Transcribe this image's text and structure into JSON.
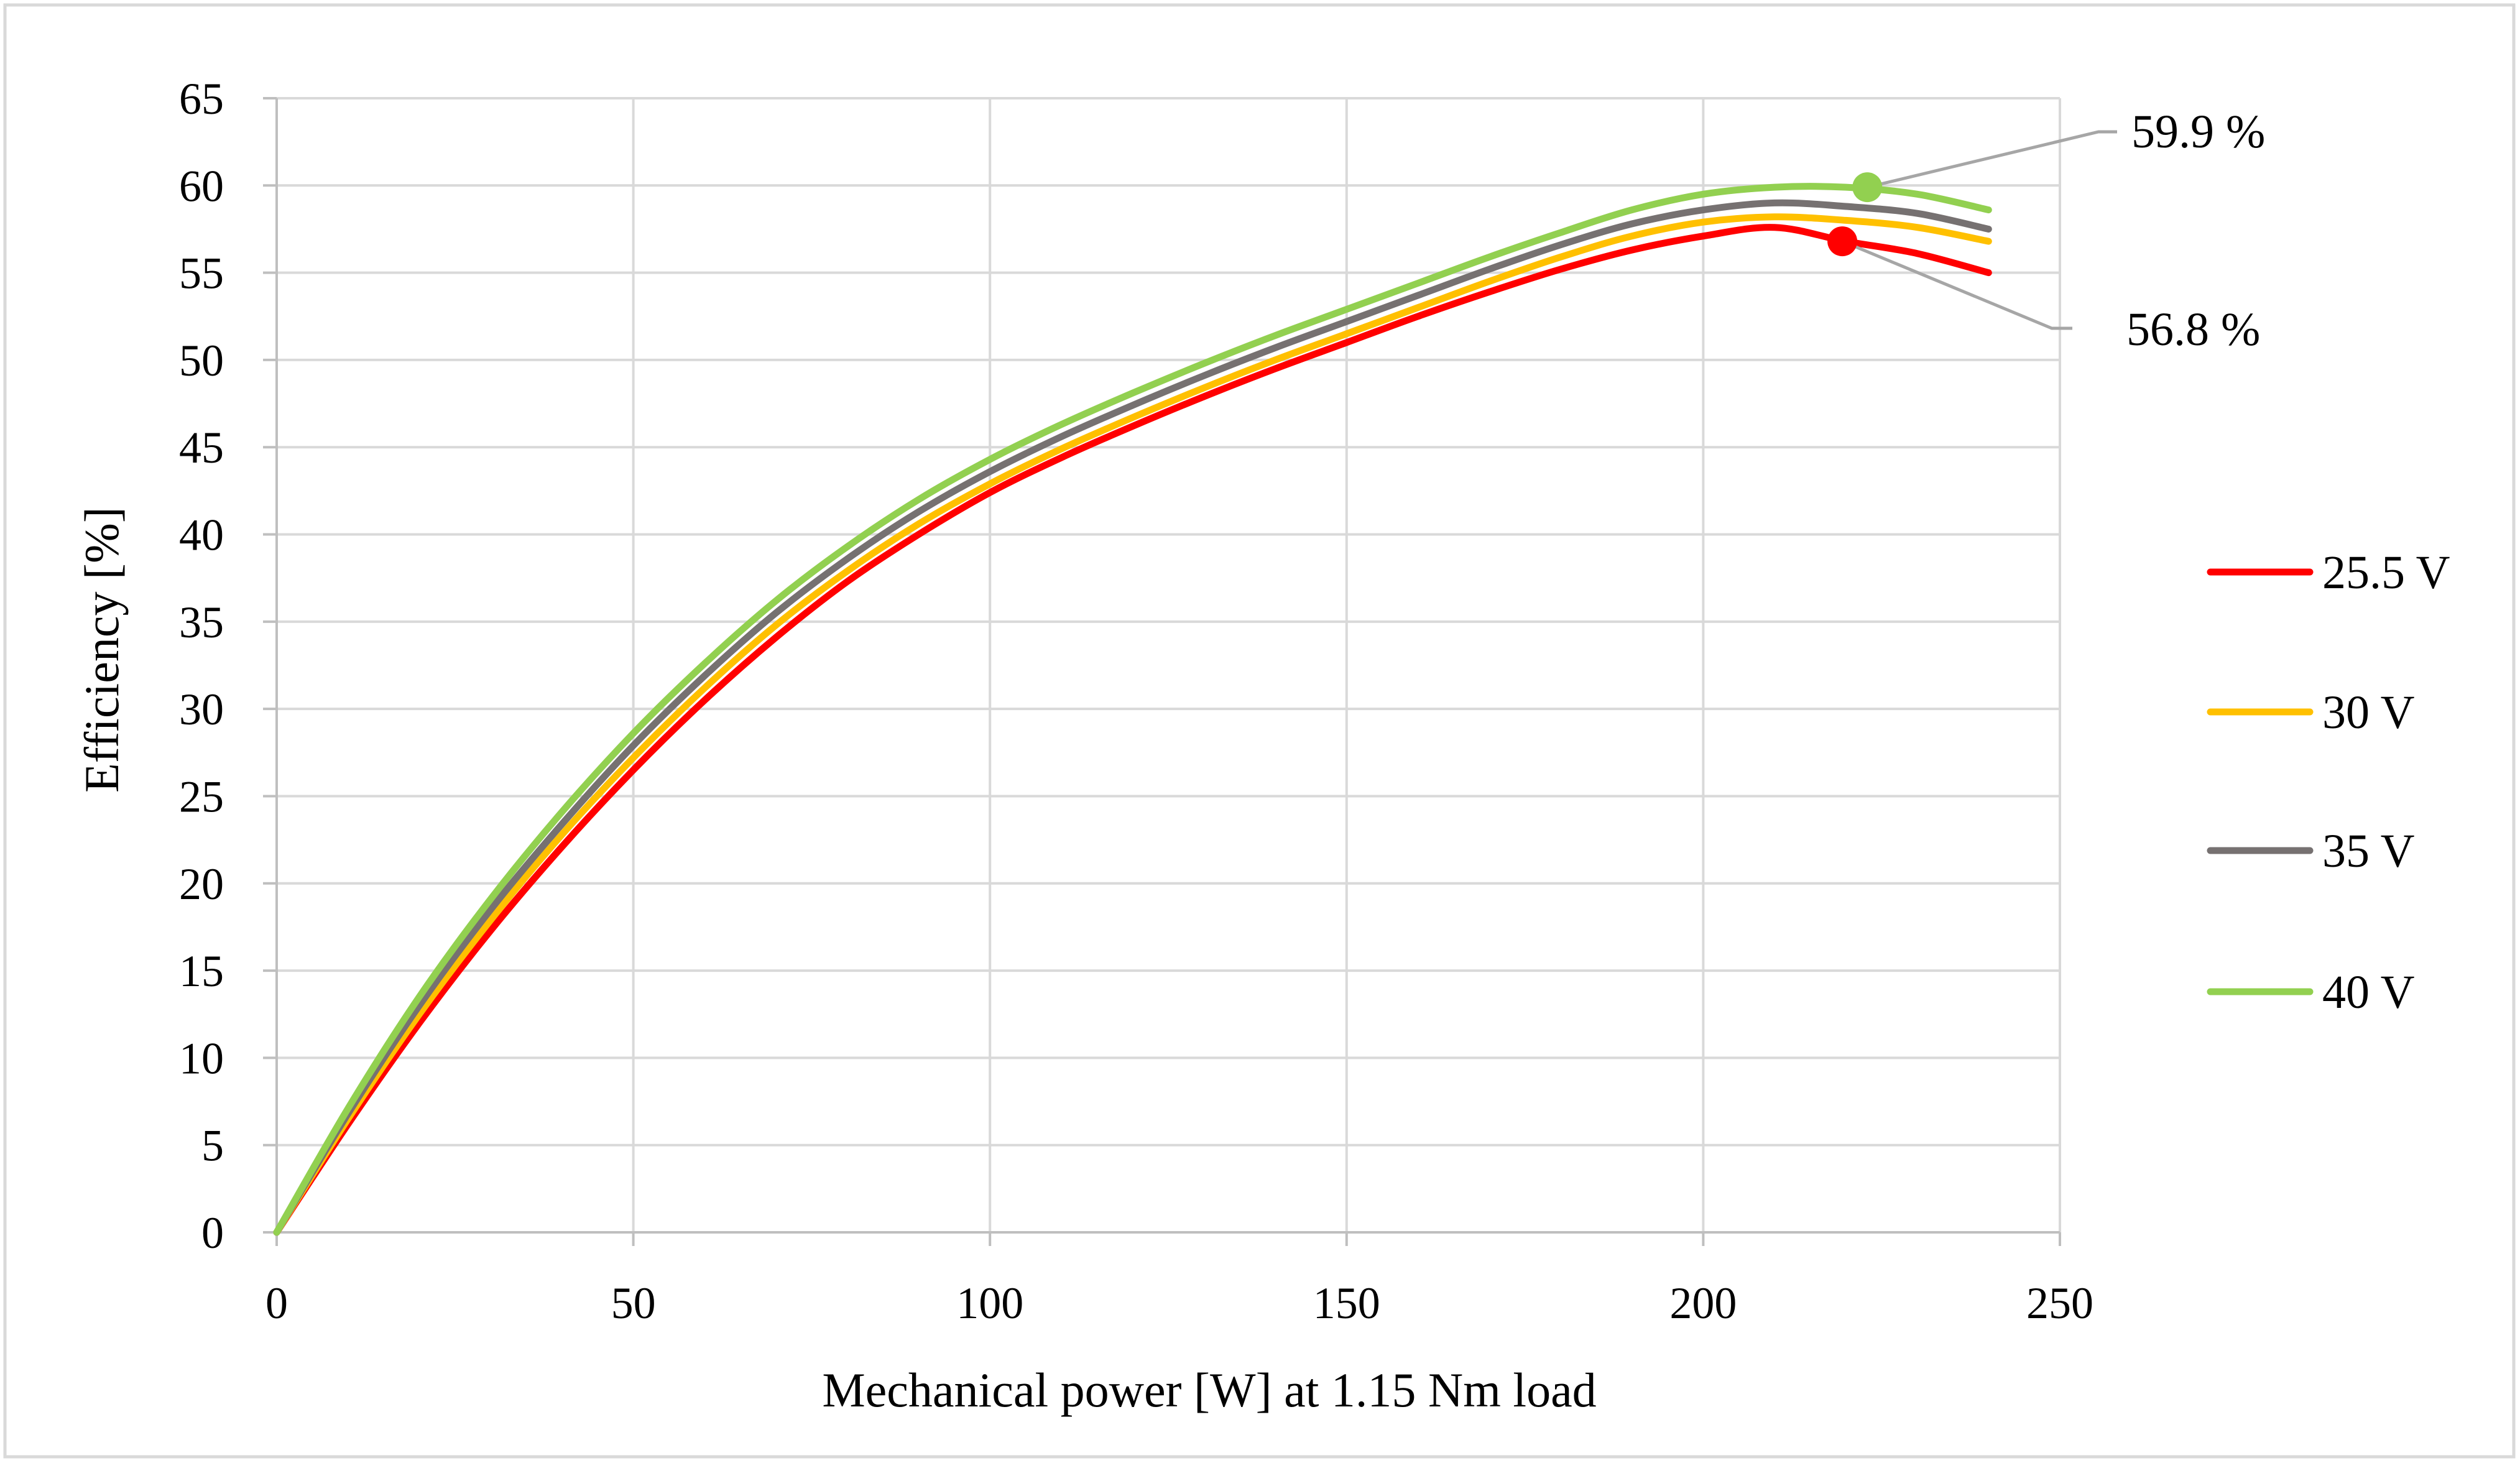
{
  "chart_data": {
    "type": "line",
    "title": "",
    "xlabel": "Mechanical power [W] at 1.15 Nm load",
    "ylabel": "Efficiency [%]",
    "xlim": [
      0,
      250
    ],
    "ylim": [
      0,
      65
    ],
    "xticks": [
      0,
      50,
      100,
      150,
      200,
      250
    ],
    "yticks": [
      0,
      5,
      10,
      15,
      20,
      25,
      30,
      35,
      40,
      45,
      50,
      55,
      60,
      65
    ],
    "grid": true,
    "legend_position": "right",
    "series": [
      {
        "name": "25.5 V",
        "color": "#ff0000",
        "x": [
          0,
          10,
          20,
          30,
          40,
          50,
          60,
          70,
          80,
          90,
          100,
          110,
          120,
          130,
          140,
          150,
          160,
          170,
          180,
          190,
          200,
          210,
          220,
          230,
          240
        ],
        "y": [
          0,
          6.2,
          12.0,
          17.3,
          22.1,
          26.5,
          30.5,
          34.1,
          37.3,
          40.0,
          42.4,
          44.4,
          46.2,
          47.9,
          49.5,
          51.0,
          52.5,
          53.9,
          55.2,
          56.3,
          57.1,
          57.6,
          56.8,
          56.1,
          55.0
        ]
      },
      {
        "name": "30 V",
        "color": "#ffc000",
        "x": [
          0,
          10,
          20,
          30,
          40,
          50,
          60,
          70,
          80,
          90,
          100,
          110,
          120,
          130,
          140,
          150,
          160,
          170,
          180,
          190,
          200,
          210,
          220,
          230,
          240
        ],
        "y": [
          0,
          6.5,
          12.5,
          17.9,
          22.8,
          27.2,
          31.2,
          34.8,
          37.9,
          40.6,
          42.9,
          44.9,
          46.7,
          48.4,
          50.0,
          51.5,
          53.0,
          54.5,
          55.9,
          57.1,
          57.9,
          58.2,
          58.0,
          57.6,
          56.8
        ]
      },
      {
        "name": "35 V",
        "color": "#767171",
        "x": [
          0,
          10,
          20,
          30,
          40,
          50,
          60,
          70,
          80,
          90,
          100,
          110,
          120,
          130,
          140,
          150,
          160,
          170,
          180,
          190,
          200,
          210,
          220,
          230,
          240
        ],
        "y": [
          0,
          6.8,
          13.0,
          18.5,
          23.4,
          27.9,
          31.9,
          35.5,
          38.6,
          41.3,
          43.6,
          45.6,
          47.4,
          49.1,
          50.7,
          52.2,
          53.7,
          55.2,
          56.6,
          57.8,
          58.6,
          59.0,
          58.8,
          58.4,
          57.5
        ]
      },
      {
        "name": "40 V",
        "color": "#92d050",
        "x": [
          0,
          10,
          20,
          30,
          40,
          50,
          60,
          70,
          80,
          90,
          100,
          110,
          120,
          130,
          140,
          150,
          160,
          170,
          180,
          190,
          200,
          210,
          220,
          230,
          240
        ],
        "y": [
          0,
          7.1,
          13.5,
          19.1,
          24.1,
          28.6,
          32.6,
          36.2,
          39.3,
          42.0,
          44.3,
          46.3,
          48.1,
          49.8,
          51.4,
          52.9,
          54.4,
          55.9,
          57.3,
          58.6,
          59.5,
          59.9,
          59.9,
          59.5,
          58.6
        ]
      }
    ],
    "annotations": [
      {
        "label": "59.9 %",
        "series": "40 V",
        "x": 223,
        "y": 59.9,
        "color": "#92d050",
        "label_position": "upper-right"
      },
      {
        "label": "56.8 %",
        "series": "25.5 V",
        "x": 219.5,
        "y": 56.8,
        "color": "#ff0000",
        "label_position": "lower-right"
      }
    ]
  }
}
